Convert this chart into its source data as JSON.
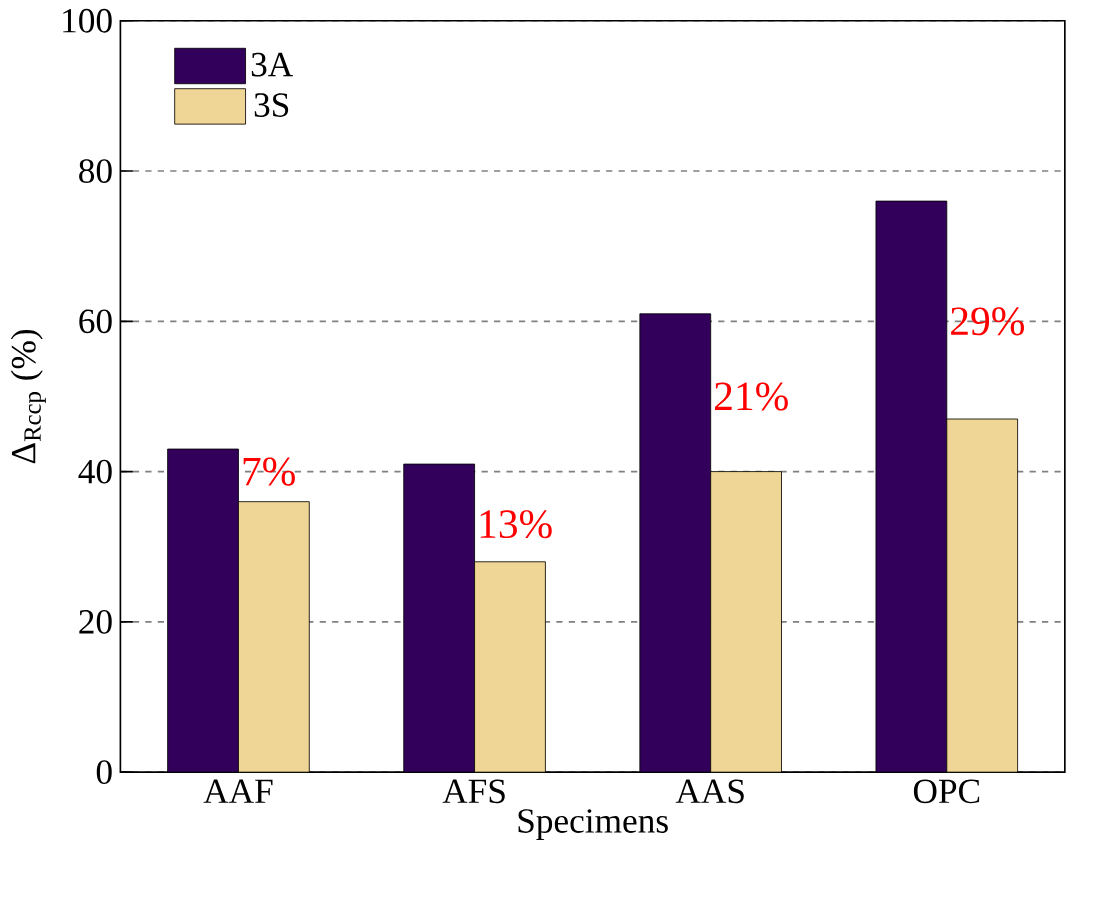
{
  "chart_data": {
    "type": "bar",
    "xlabel": "Specimens",
    "ylabel": "Δ$_{Rccp}$ (%)",
    "categories": [
      "AAF",
      "AFS",
      "AAS",
      "OPC"
    ],
    "series": [
      {
        "name": "3A",
        "color": "#32005a",
        "values": [
          43,
          41,
          61,
          76
        ]
      },
      {
        "name": "3S",
        "color": "#f0d696",
        "values": [
          36,
          28,
          40,
          47
        ]
      }
    ],
    "ylim": [
      0,
      100
    ],
    "yticks": [
      0,
      20,
      40,
      60,
      80,
      100
    ],
    "grid": "y",
    "legend": "top left",
    "annotations": [
      {
        "text": "7%",
        "x": "AAF",
        "y": 40
      },
      {
        "text": "13%",
        "x": "AFS",
        "y": 33
      },
      {
        "text": "21%",
        "x": "AAS",
        "y": 50
      },
      {
        "text": "29%",
        "x": "OPC",
        "y": 60
      }
    ]
  }
}
